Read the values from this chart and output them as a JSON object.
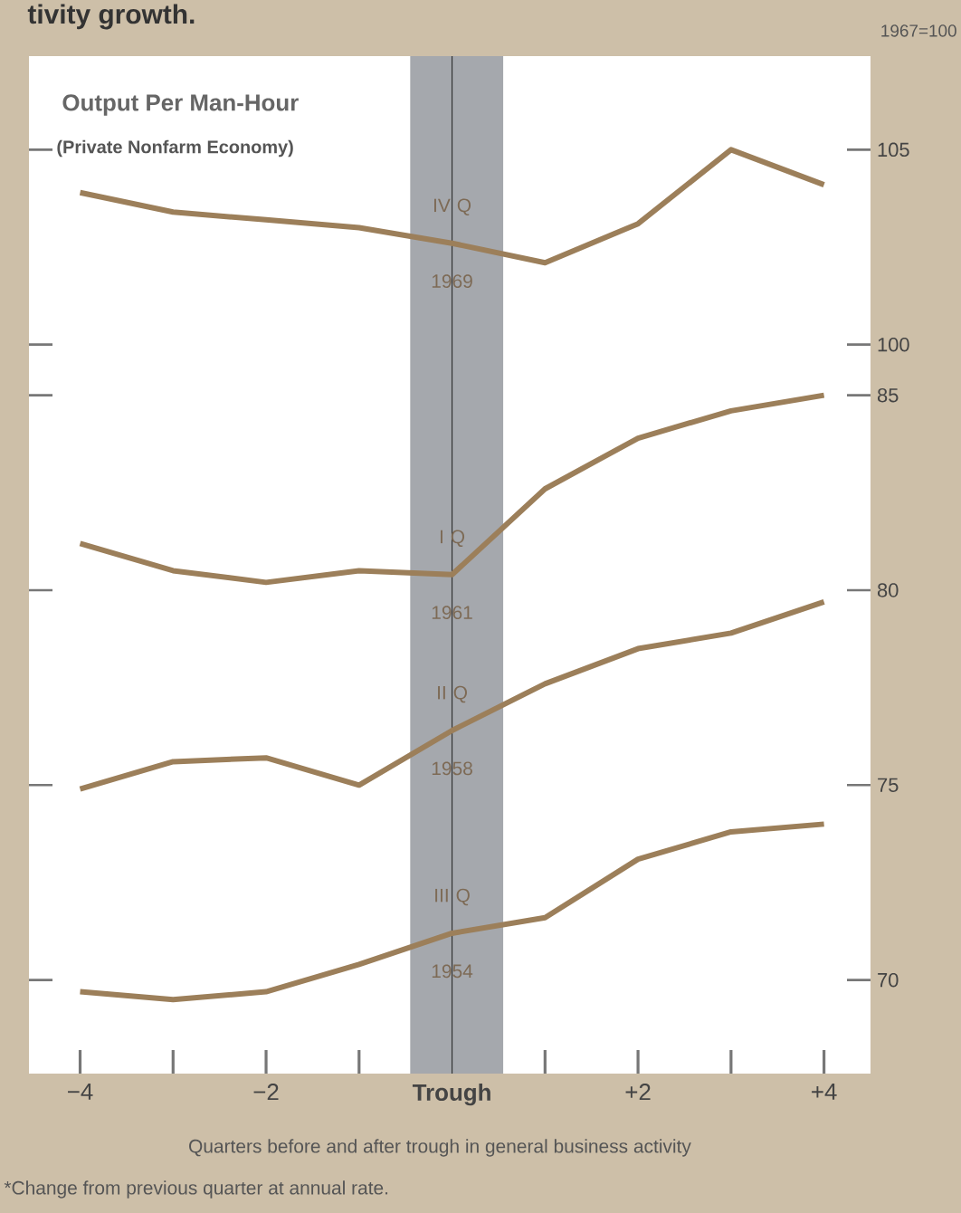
{
  "chart_data": {
    "type": "line",
    "title": "tivity growth.",
    "subtitle": "Output Per Man-Hour",
    "xlabel": "Quarters before and after trough in general business activity",
    "annotations": [
      "(Private Nonfarm Economy)",
      "1967=100",
      "*Change from previous quarter at annual rate."
    ],
    "x": [
      -4,
      -3,
      -2,
      -1,
      0,
      1,
      2,
      3,
      4
    ],
    "xlim": [
      -4.55,
      4.5
    ],
    "xticks": [
      {
        "value": -4,
        "label": "−4"
      },
      {
        "value": -3,
        "label": null
      },
      {
        "value": -2,
        "label": "−2"
      },
      {
        "value": -1,
        "label": null
      },
      {
        "value": 0,
        "label": "**Trough**"
      },
      {
        "value": 1,
        "label": null
      },
      {
        "value": 2,
        "label": "+2"
      },
      {
        "value": 3,
        "label": null
      },
      {
        "value": 4,
        "label": "+4"
      }
    ],
    "ylim": [
      67.6,
      93.7
    ],
    "yticks": [
      70,
      75,
      80,
      85
    ],
    "y2lim": [
      81.3,
      107.4
    ],
    "y2ticks": [
      100,
      105
    ],
    "bands": [
      {
        "axis": "x",
        "from": -0.45,
        "to": 0.55,
        "color": "#a5a8ad"
      }
    ],
    "ref_lines": [
      {
        "axis": "x",
        "value": 0,
        "color": "#333333"
      }
    ],
    "series": [
      {
        "name": "IV Q 1969",
        "color": "#9c7f5a",
        "axis": "y2",
        "values": [
          103.9,
          103.4,
          103.2,
          103.0,
          102.6,
          102.1,
          103.1,
          105.0,
          104.1
        ]
      },
      {
        "name": "I Q 1961",
        "color": "#9c7f5a",
        "values": [
          81.2,
          80.5,
          80.2,
          80.5,
          80.4,
          82.6,
          83.9,
          84.6,
          85.0
        ]
      },
      {
        "name": "II Q 1958",
        "color": "#9c7f5a",
        "values": [
          74.9,
          75.6,
          75.7,
          75.0,
          76.4,
          77.6,
          78.5,
          78.9,
          79.7
        ]
      },
      {
        "name": "III Q 1954",
        "color": "#9c7f5a",
        "values": [
          69.7,
          69.5,
          69.7,
          70.4,
          71.2,
          71.6,
          73.1,
          73.8,
          74.0
        ]
      }
    ]
  }
}
